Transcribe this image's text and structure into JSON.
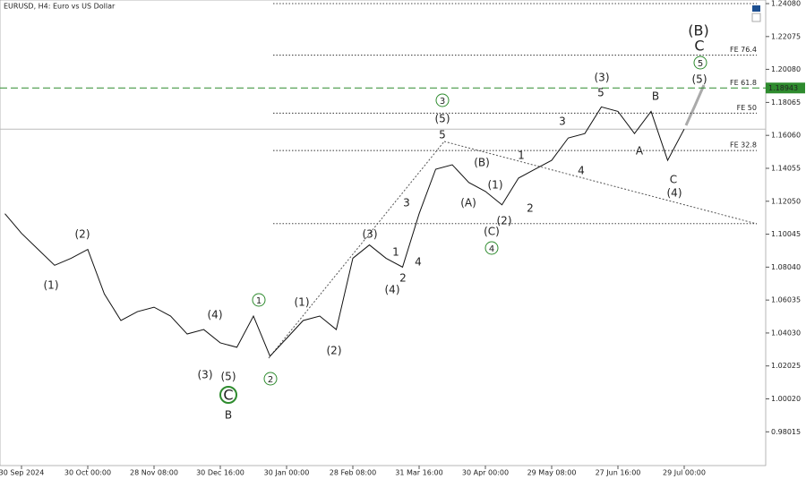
{
  "chart_data": {
    "type": "line",
    "title": "EURUSD, H4:  Euro vs US Dollar",
    "color": "#111111",
    "categories": [
      null,
      "30 Sep 2024",
      null,
      null,
      null,
      "30 Oct 00:00",
      null,
      null,
      null,
      "28 Nov 08:00",
      null,
      null,
      null,
      "30 Dec 16:00",
      null,
      null,
      null,
      "30 Jan 00:00",
      null,
      null,
      null,
      "28 Feb 08:00",
      null,
      null,
      null,
      "31 Mar 16:00",
      null,
      null,
      null,
      "30 Apr 00:00",
      null,
      null,
      null,
      "29 May 08:00",
      null,
      null,
      null,
      "27 Jun 16:00",
      null,
      null,
      null,
      "29 Jul 00:00"
    ],
    "values": [
      1.1129,
      1.101,
      1.0912,
      1.0815,
      1.0858,
      1.0912,
      1.0641,
      1.0479,
      1.0533,
      1.056,
      1.0506,
      1.0397,
      1.0424,
      1.0343,
      1.0316,
      1.0506,
      1.0262,
      1.037,
      1.0479,
      1.0506,
      1.0424,
      1.0858,
      1.0939,
      1.0858,
      1.0804,
      1.1129,
      1.14,
      1.1427,
      1.1319,
      1.1265,
      1.1183,
      1.1346,
      1.14,
      1.1454,
      1.159,
      1.1617,
      1.1779,
      1.1752,
      1.1617,
      1.1752,
      1.1454,
      1.1644
    ],
    "ylim": [
      0.9596,
      1.243
    ],
    "yticks": [
      {
        "value": 1.2408,
        "label": "1.24080"
      },
      {
        "value": 1.22075,
        "label": "1.22075"
      },
      {
        "value": 1.2008,
        "label": "1.20080"
      },
      {
        "value": 1.18065,
        "label": "1.18065"
      },
      {
        "value": 1.1606,
        "label": "1.16060"
      },
      {
        "value": 1.14055,
        "label": "1.14055"
      },
      {
        "value": 1.1205,
        "label": "1.12050"
      },
      {
        "value": 1.10045,
        "label": "1.10045"
      },
      {
        "value": 1.0804,
        "label": "1.08040"
      },
      {
        "value": 1.06035,
        "label": "1.06035"
      },
      {
        "value": 1.0403,
        "label": "1.04030"
      },
      {
        "value": 1.02025,
        "label": "1.02025"
      },
      {
        "value": 1.0002,
        "label": "1.00020"
      },
      {
        "value": 0.98015,
        "label": "0.98015"
      }
    ],
    "levels": [
      {
        "label": "FE 76.4",
        "value": 1.2094,
        "color": "#333333"
      },
      {
        "label": "FE 61.8",
        "value": 1.18943,
        "color": "#2e8b2e",
        "price_label": true
      },
      {
        "label": "FE 50",
        "value": 1.1741,
        "color": "#333333"
      },
      {
        "label": "FE 32.8",
        "value": 1.1514,
        "color": "#333333"
      }
    ],
    "lines": [
      1.2408,
      1.1069
    ],
    "annotations": [
      "(1)",
      "(2)",
      "(3)",
      "(4)",
      "(5)",
      "C",
      "B",
      "1",
      "2",
      "(1)",
      "(2)",
      "(3)",
      "(4)",
      "1",
      "2",
      "3",
      "4",
      "5",
      "(5)",
      "3",
      "(A)",
      "(B)",
      "(1)",
      "(2)",
      "(C)",
      "4",
      "1",
      "2",
      "3",
      "4",
      "5",
      "(3)",
      "A",
      "B",
      "C",
      "(4)",
      "(5)",
      "5",
      "C",
      "(B)"
    ]
  }
}
